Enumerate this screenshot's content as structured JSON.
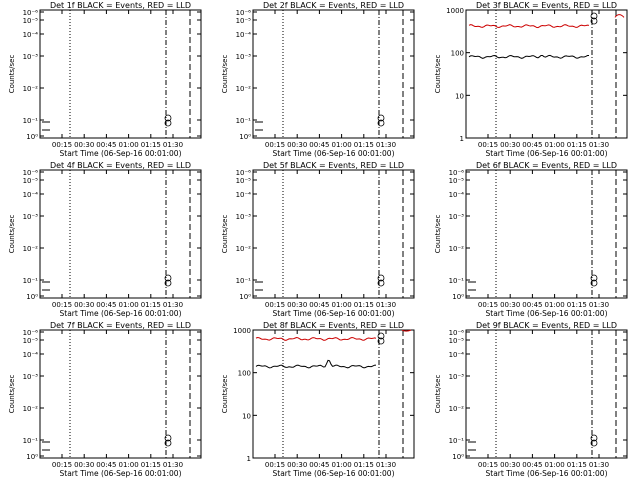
{
  "chart_data": [
    {
      "type": "line",
      "det": "1f",
      "title": "Det 1f BLACK = Events, RED = LLD",
      "xlabel": "Start Time (06-Sep-16 00:01:00)",
      "ylabel": "Counts/sec",
      "xticks": [
        "00:15",
        "00:30",
        "00:45",
        "01:00",
        "01:15",
        "01:30"
      ],
      "yticks": [
        "10⁰",
        "10⁻¹",
        "10⁻²",
        "10⁻³",
        "10⁻⁴",
        "10⁻⁵",
        "10⁻⁶"
      ],
      "scale": "log-degenerate",
      "series": []
    },
    {
      "type": "line",
      "det": "2f",
      "title": "Det 2f BLACK = Events, RED = LLD",
      "xlabel": "Start Time (06-Sep-16 00:01:00)",
      "ylabel": "Counts/sec",
      "xticks": [
        "00:15",
        "00:30",
        "00:45",
        "01:00",
        "01:15",
        "01:30"
      ],
      "yticks": [
        "10⁰",
        "10⁻¹",
        "10⁻²",
        "10⁻³",
        "10⁻⁴",
        "10⁻⁵",
        "10⁻⁶"
      ],
      "scale": "log-degenerate",
      "series": []
    },
    {
      "type": "line",
      "det": "3f",
      "title": "Det 3f BLACK = Events, RED = LLD",
      "xlabel": "Start Time (06-Sep-16 00:01:00)",
      "ylabel": "Counts/sec",
      "xticks": [
        "00:15",
        "00:30",
        "00:45",
        "01:00",
        "01:15",
        "01:30"
      ],
      "yticks": [
        "1",
        "10",
        "100",
        "1000"
      ],
      "scale": "log",
      "ylim": [
        1,
        1000
      ],
      "series": [
        {
          "color": "#000000",
          "base": 80,
          "bump": 8
        },
        {
          "color": "#cc0000",
          "base": 420,
          "bump": 0
        }
      ]
    },
    {
      "type": "line",
      "det": "4f",
      "title": "Det 4f BLACK = Events, RED = LLD",
      "xlabel": "Start Time (06-Sep-16 00:01:00)",
      "ylabel": "Counts/sec",
      "xticks": [
        "00:15",
        "00:30",
        "00:45",
        "01:00",
        "01:15",
        "01:30"
      ],
      "yticks": [
        "10⁰",
        "10⁻¹",
        "10⁻²",
        "10⁻³",
        "10⁻⁴",
        "10⁻⁵",
        "10⁻⁶"
      ],
      "scale": "log-degenerate",
      "series": []
    },
    {
      "type": "line",
      "det": "5f",
      "title": "Det 5f BLACK = Events, RED = LLD",
      "xlabel": "Start Time (06-Sep-16 00:01:00)",
      "ylabel": "Counts/sec",
      "xticks": [
        "00:15",
        "00:30",
        "00:45",
        "01:00",
        "01:15",
        "01:30"
      ],
      "yticks": [
        "10⁰",
        "10⁻¹",
        "10⁻²",
        "10⁻³",
        "10⁻⁴",
        "10⁻⁵",
        "10⁻⁶"
      ],
      "scale": "log-degenerate",
      "series": []
    },
    {
      "type": "line",
      "det": "6f",
      "title": "Det 6f BLACK = Events, RED = LLD",
      "xlabel": "Start Time (06-Sep-16 00:01:00)",
      "ylabel": "Counts/sec",
      "xticks": [
        "00:15",
        "00:30",
        "00:45",
        "01:00",
        "01:15",
        "01:30"
      ],
      "yticks": [
        "10⁰",
        "10⁻¹",
        "10⁻²",
        "10⁻³",
        "10⁻⁴",
        "10⁻⁵",
        "10⁻⁶"
      ],
      "scale": "log-degenerate",
      "series": []
    },
    {
      "type": "line",
      "det": "7f",
      "title": "Det 7f BLACK = Events, RED = LLD",
      "xlabel": "Start Time (06-Sep-16 00:01:00)",
      "ylabel": "Counts/sec",
      "xticks": [
        "00:15",
        "00:30",
        "00:45",
        "01:00",
        "01:15",
        "01:30"
      ],
      "yticks": [
        "10⁰",
        "10⁻¹",
        "10⁻²",
        "10⁻³",
        "10⁻⁴",
        "10⁻⁵",
        "10⁻⁶"
      ],
      "scale": "log-degenerate",
      "series": []
    },
    {
      "type": "line",
      "det": "8f",
      "title": "Det 8f BLACK = Events, RED = LLD",
      "xlabel": "Start Time (06-Sep-16 00:01:00)",
      "ylabel": "Counts/sec",
      "xticks": [
        "00:15",
        "00:30",
        "00:45",
        "01:00",
        "01:15",
        "01:30"
      ],
      "yticks": [
        "1",
        "10",
        "100",
        "1000"
      ],
      "scale": "log",
      "ylim": [
        1,
        1000
      ],
      "series": [
        {
          "color": "#000000",
          "base": 140,
          "bump": 60
        },
        {
          "color": "#cc0000",
          "base": 620,
          "bump": 0
        }
      ]
    },
    {
      "type": "line",
      "det": "9f",
      "title": "Det 9f BLACK = Events, RED = LLD",
      "xlabel": "Start Time (06-Sep-16 00:01:00)",
      "ylabel": "Counts/sec",
      "xticks": [
        "00:15",
        "00:30",
        "00:45",
        "01:00",
        "01:15",
        "01:30"
      ],
      "yticks": [
        "10⁰",
        "10⁻¹",
        "10⁻²",
        "10⁻³",
        "10⁻⁴",
        "10⁻⁵",
        "10⁻⁶"
      ],
      "scale": "log-degenerate",
      "series": []
    }
  ],
  "colors": {
    "events": "#000000",
    "lld": "#cc0000"
  }
}
